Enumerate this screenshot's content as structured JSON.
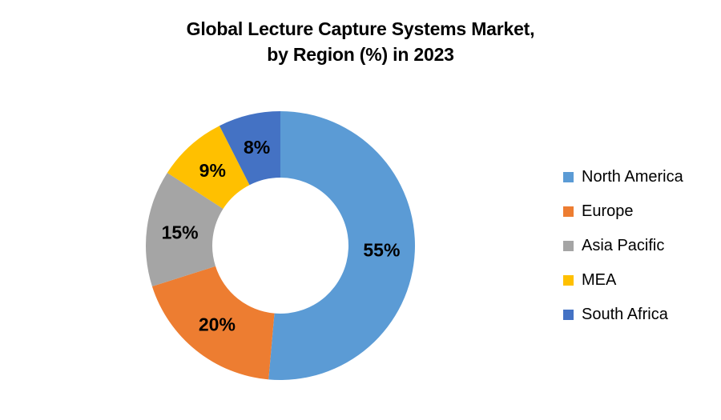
{
  "page": {
    "background_color": "#ffffff"
  },
  "chart_data": {
    "type": "pie",
    "variant": "donut",
    "title": "Global Lecture Capture Systems Market, by Region (%) in 2023",
    "title_lines": [
      "Global Lecture Capture Systems Market,",
      "by Region (%) in 2023"
    ],
    "categories": [
      "North America",
      "Europe",
      "Asia Pacific",
      "MEA",
      "South Africa"
    ],
    "values": [
      55,
      20,
      15,
      9,
      8
    ],
    "labels": [
      "55%",
      "20%",
      "15%",
      "9%",
      "8%"
    ],
    "colors": [
      "#5B9BD5",
      "#ED7D31",
      "#A5A5A5",
      "#FFC000",
      "#4472C4"
    ],
    "start_angle_deg": 0,
    "direction": "clockwise",
    "donut_hole_ratio": 0.5,
    "legend_position": "right",
    "label_color": "#000000",
    "title_color": "#000000",
    "background_color": "#ffffff"
  }
}
